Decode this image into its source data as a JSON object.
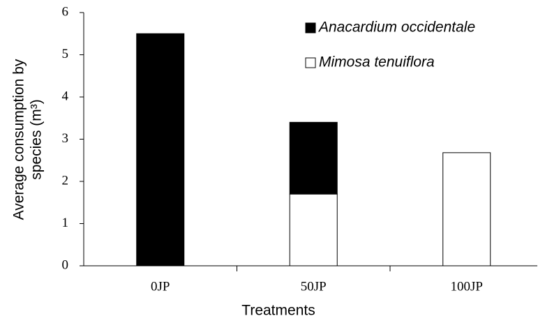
{
  "chart_data": {
    "type": "stacked_bar",
    "ylabel": [
      "Average consumption by",
      "species (m³)"
    ],
    "xlabel": "Treatments",
    "categories": [
      "0JP",
      "50JP",
      "100JP"
    ],
    "series": [
      {
        "name": "Anacardium occidentale",
        "color": "#000000",
        "values": [
          5.5,
          1.7,
          0
        ]
      },
      {
        "name": "Mimosa tenuiflora",
        "color": "#ffffff",
        "values": [
          0,
          1.7,
          2.68
        ]
      }
    ],
    "ylim": [
      0,
      6
    ],
    "yticks": [
      0,
      1,
      2,
      3,
      4,
      5,
      6
    ],
    "legend": "upper right"
  }
}
